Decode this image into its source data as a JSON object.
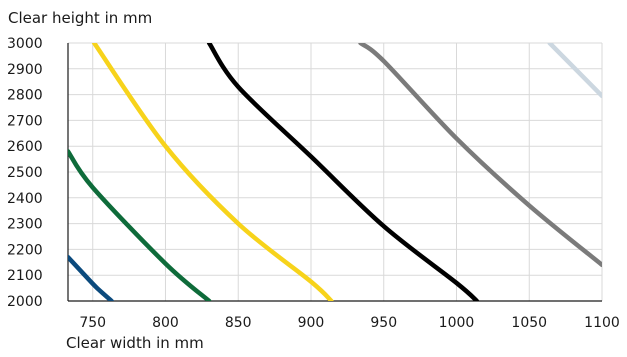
{
  "chart_data": {
    "type": "line",
    "title": "",
    "xlabel": "Clear width in mm",
    "ylabel": "Clear height in mm",
    "xlim": [
      733,
      1100
    ],
    "ylim": [
      2000,
      3000
    ],
    "xticks": [
      750,
      800,
      850,
      900,
      950,
      1000,
      1050,
      1100
    ],
    "yticks": [
      2000,
      2100,
      2200,
      2300,
      2400,
      2500,
      2600,
      2700,
      2800,
      2900,
      3000
    ],
    "grid": true,
    "legend": "none",
    "series": [
      {
        "color": "#0b4a7d",
        "points": [
          [
            733,
            2170
          ],
          [
            747,
            2085
          ],
          [
            753,
            2050
          ],
          [
            763,
            2000
          ]
        ]
      },
      {
        "color": "#0e6b3a",
        "points": [
          [
            733,
            2580
          ],
          [
            750,
            2440
          ],
          [
            800,
            2145
          ],
          [
            830,
            2000
          ]
        ]
      },
      {
        "color": "#f7d31b",
        "points": [
          [
            751,
            3000
          ],
          [
            800,
            2600
          ],
          [
            850,
            2300
          ],
          [
            900,
            2075
          ],
          [
            914,
            2000
          ]
        ]
      },
      {
        "color": "#000000",
        "points": [
          [
            830,
            3000
          ],
          [
            850,
            2830
          ],
          [
            900,
            2560
          ],
          [
            950,
            2290
          ],
          [
            1000,
            2070
          ],
          [
            1014,
            2000
          ]
        ]
      },
      {
        "color": "#7b7b7b",
        "points": [
          [
            934,
            3000
          ],
          [
            950,
            2930
          ],
          [
            1000,
            2630
          ],
          [
            1050,
            2370
          ],
          [
            1100,
            2140
          ]
        ]
      },
      {
        "color": "#ccd7e0",
        "points": [
          [
            1064,
            3000
          ],
          [
            1100,
            2795
          ]
        ]
      }
    ]
  }
}
